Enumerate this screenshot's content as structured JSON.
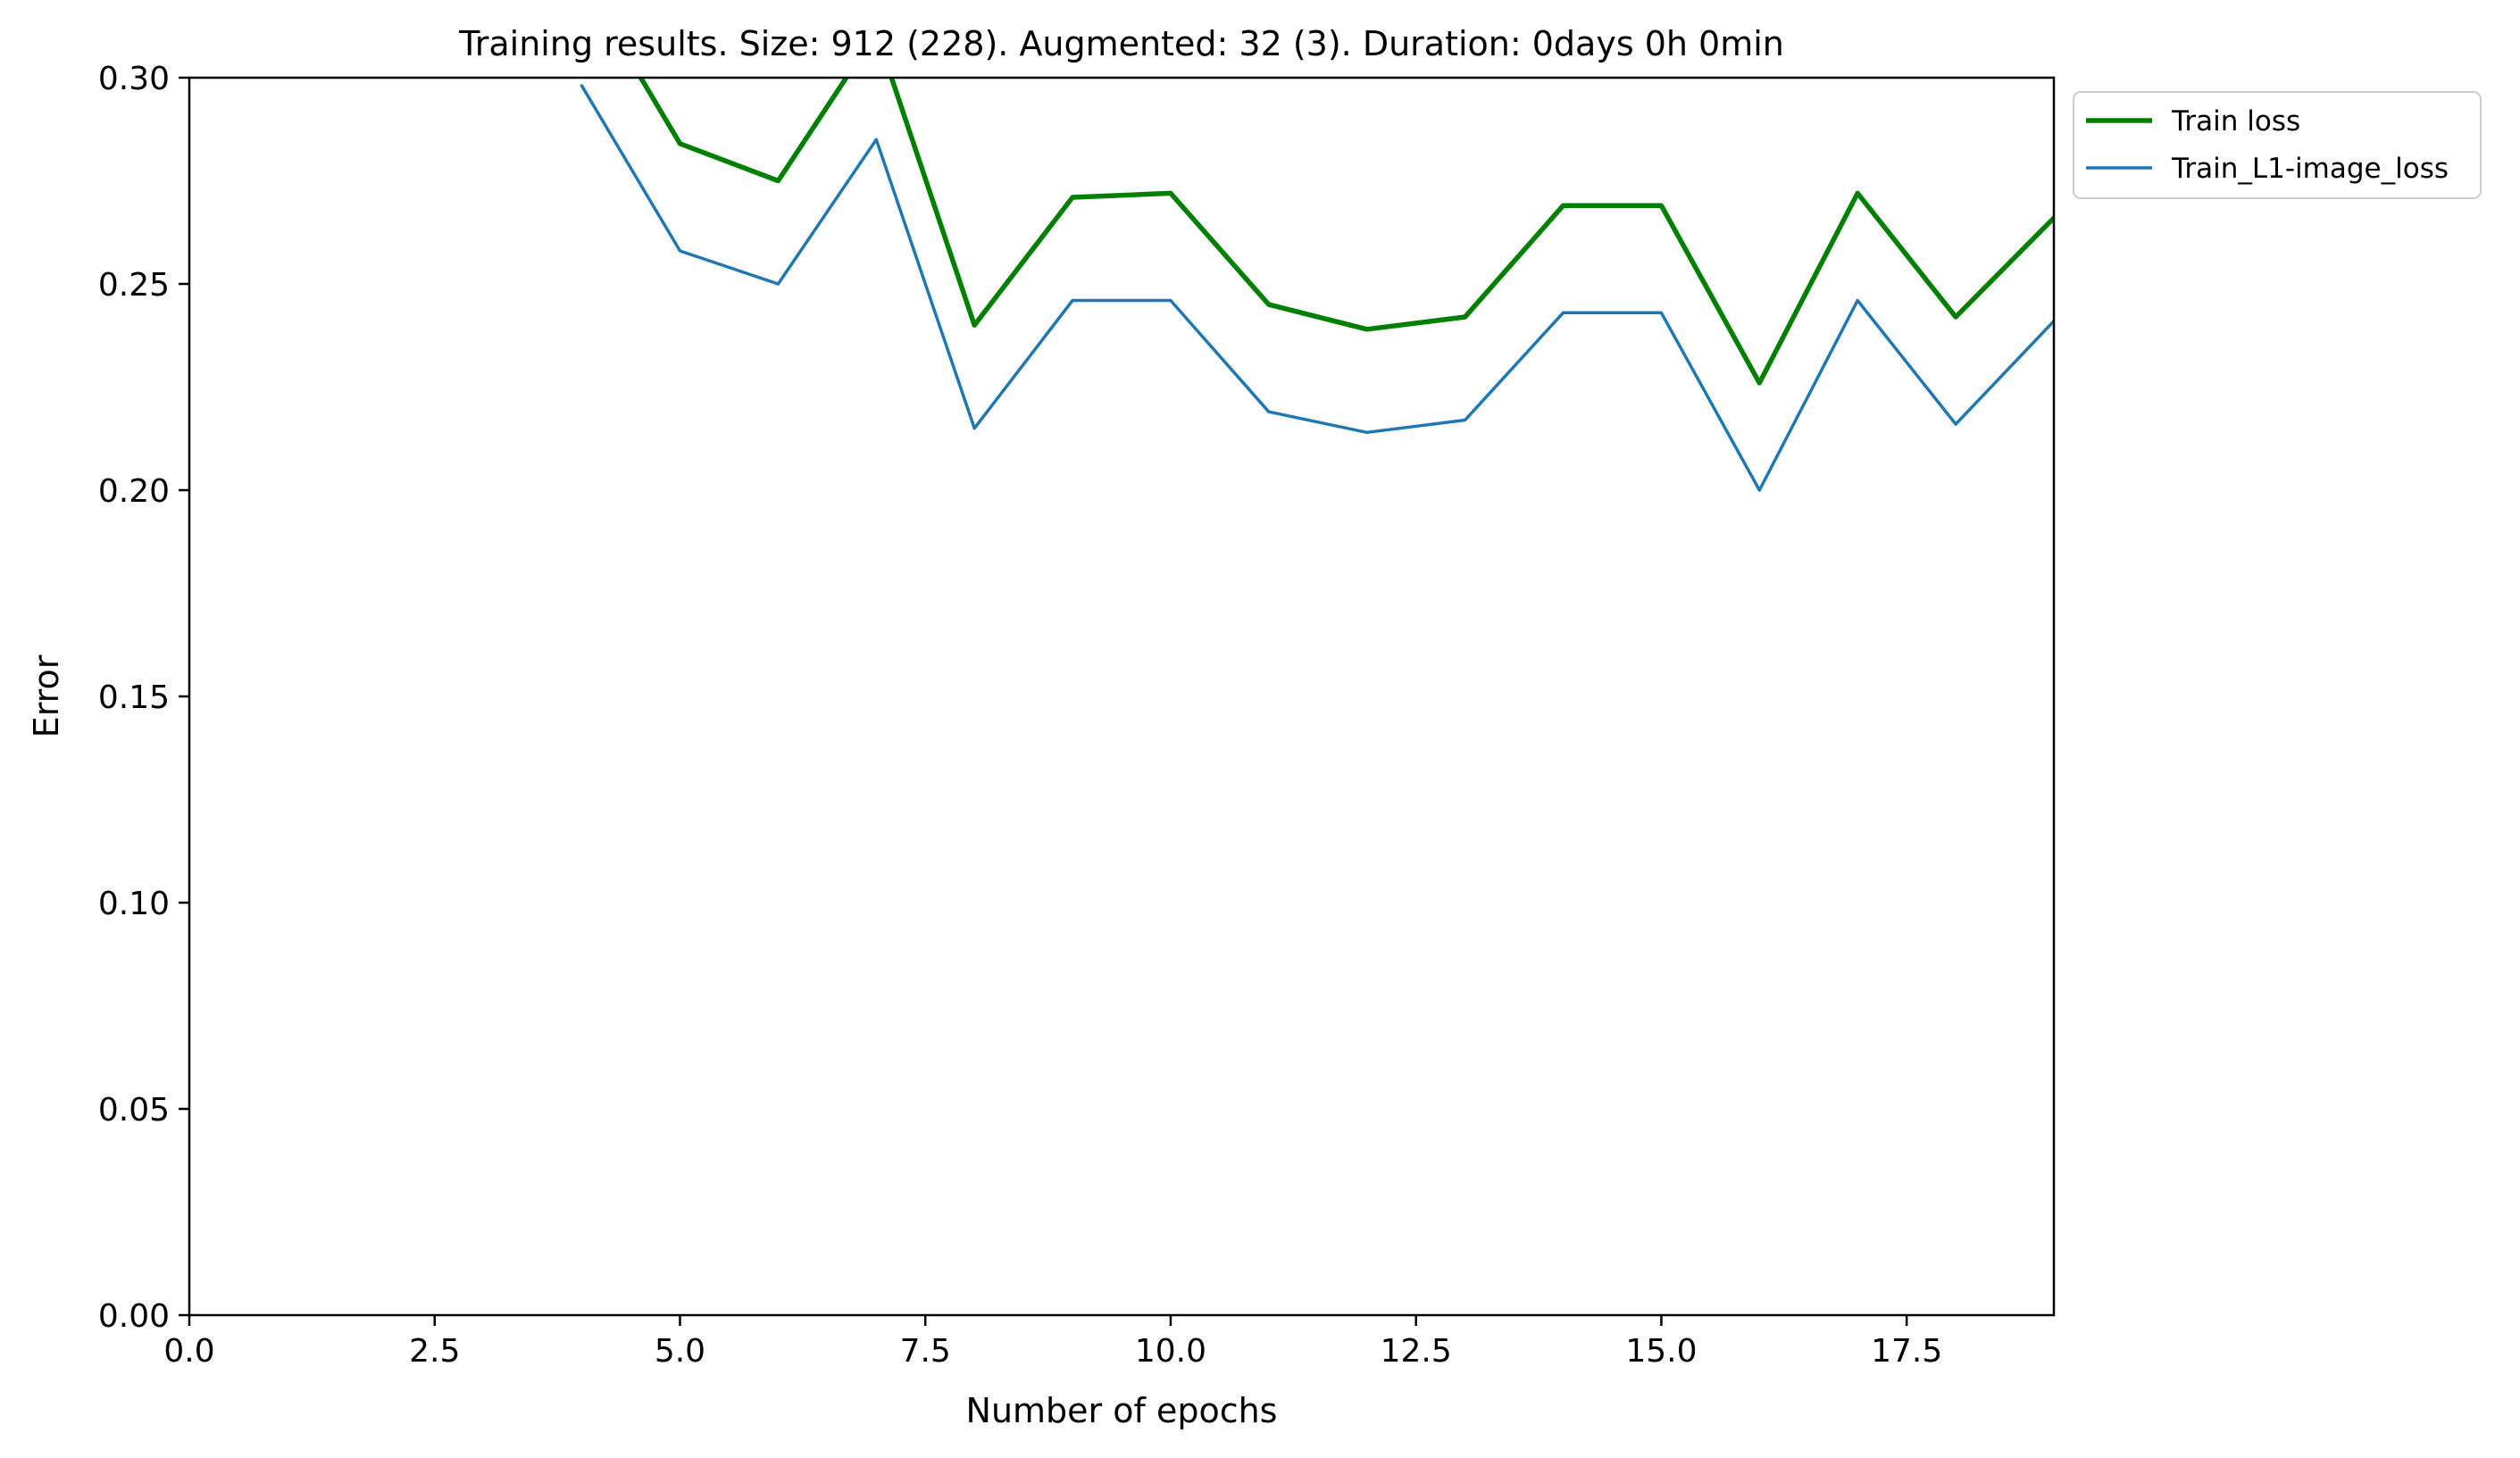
{
  "chart_data": {
    "type": "line",
    "title": "Training results. Size: 912 (228). Augmented: 32 (3). Duration: 0days 0h 0min",
    "xlabel": "Number of epochs",
    "ylabel": "Error",
    "xlim": [
      0,
      19
    ],
    "ylim": [
      0,
      0.3
    ],
    "xticks": [
      "0.0",
      "2.5",
      "5.0",
      "7.5",
      "10.0",
      "12.5",
      "15.0",
      "17.5"
    ],
    "xtick_values": [
      0,
      2.5,
      5,
      7.5,
      10,
      12.5,
      15,
      17.5
    ],
    "yticks": [
      "0.00",
      "0.05",
      "0.10",
      "0.15",
      "0.20",
      "0.25",
      "0.30"
    ],
    "ytick_values": [
      0,
      0.05,
      0.1,
      0.15,
      0.2,
      0.25,
      0.3
    ],
    "grid": false,
    "legend_position": "outside-top-right",
    "series": [
      {
        "name": "Train loss",
        "color": "#008000",
        "x": [
          4,
          5,
          6,
          7,
          8,
          9,
          10,
          11,
          12,
          13,
          14,
          15,
          16,
          17,
          18,
          19
        ],
        "y": [
          0.324,
          0.284,
          0.275,
          0.311,
          0.24,
          0.271,
          0.272,
          0.245,
          0.239,
          0.242,
          0.269,
          0.269,
          0.226,
          0.272,
          0.242,
          0.266
        ]
      },
      {
        "name": "Train_L1-image_loss",
        "color": "#1f77b4",
        "x": [
          4,
          5,
          6,
          7,
          8,
          9,
          10,
          11,
          12,
          13,
          14,
          15,
          16,
          17,
          18,
          19
        ],
        "y": [
          0.298,
          0.258,
          0.25,
          0.285,
          0.215,
          0.246,
          0.246,
          0.219,
          0.214,
          0.217,
          0.243,
          0.243,
          0.2,
          0.246,
          0.216,
          0.241
        ]
      }
    ]
  }
}
